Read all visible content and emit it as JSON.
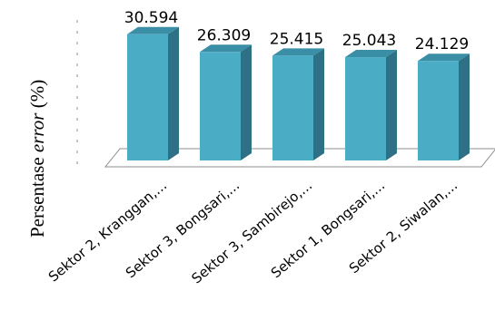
{
  "chart_data": {
    "type": "bar",
    "categories": [
      "Sektor 2, Kranggan,...",
      "Sektor 3, Bongsari,...",
      "Sektor 3, Sambirejo,...",
      "Sektor 1, Bongsari,...",
      "Sektor 2, Siwalan,..."
    ],
    "values": [
      30.594,
      26.309,
      25.415,
      25.043,
      24.129
    ],
    "data_labels": [
      "30.594",
      "26.309",
      "25.415",
      "25.043",
      "24.129"
    ],
    "ylabel": {
      "prefix": "Persentase ",
      "italic": "error",
      "suffix": " (%)"
    },
    "ylim": [
      0,
      35
    ],
    "grid": false,
    "legend": "none",
    "colors": {
      "front": "#4bacc6",
      "side": "#2e7184",
      "top": "#3a8ea5",
      "floor": "#ffffff",
      "floor_edge": "#8c8c8c"
    }
  }
}
